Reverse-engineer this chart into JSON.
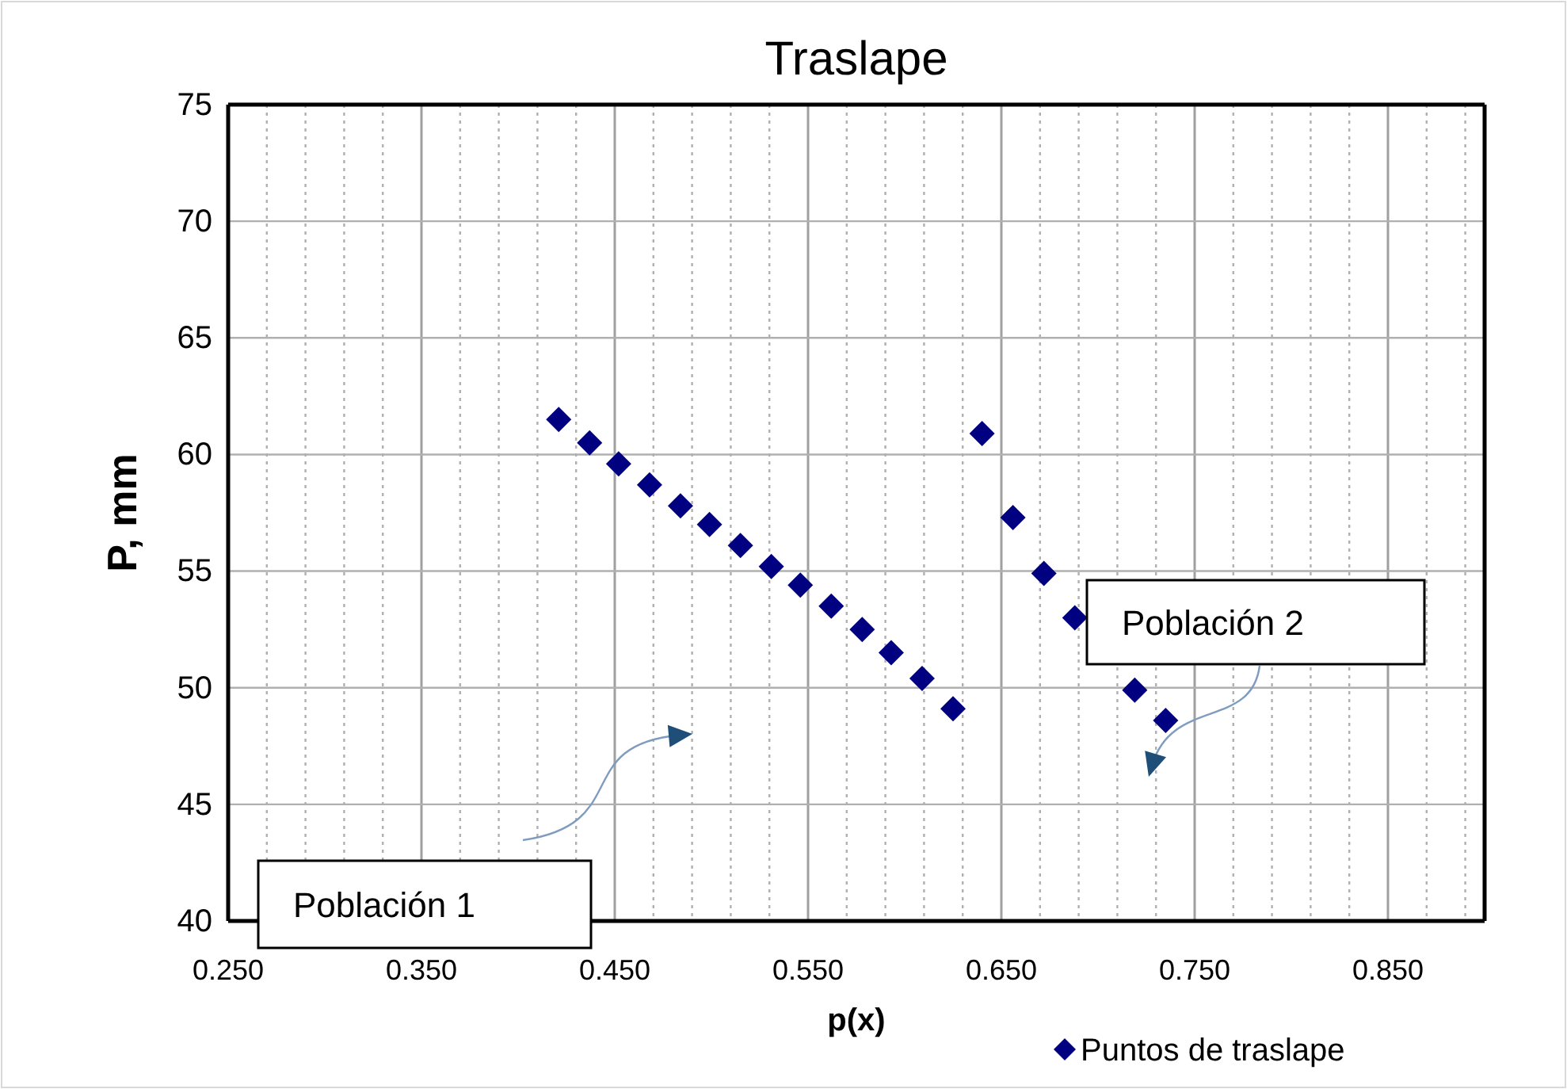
{
  "chart_data": {
    "type": "scatter",
    "title": "Traslape",
    "xlabel": "p(x)",
    "ylabel": "P, mm",
    "xlim": [
      0.25,
      0.9
    ],
    "xticks": [
      {
        "value": 0.25,
        "label": "0.250"
      },
      {
        "value": 0.27,
        "label": null
      },
      {
        "value": 0.29,
        "label": null
      },
      {
        "value": 0.31,
        "label": null
      },
      {
        "value": 0.33,
        "label": null
      },
      {
        "value": 0.35,
        "label": "0.350"
      },
      {
        "value": 0.37,
        "label": null
      },
      {
        "value": 0.39,
        "label": null
      },
      {
        "value": 0.41,
        "label": null
      },
      {
        "value": 0.43,
        "label": null
      },
      {
        "value": 0.45,
        "label": "0.450"
      },
      {
        "value": 0.47,
        "label": null
      },
      {
        "value": 0.49,
        "label": null
      },
      {
        "value": 0.51,
        "label": null
      },
      {
        "value": 0.53,
        "label": null
      },
      {
        "value": 0.55,
        "label": "0.550"
      },
      {
        "value": 0.57,
        "label": null
      },
      {
        "value": 0.59,
        "label": null
      },
      {
        "value": 0.61,
        "label": null
      },
      {
        "value": 0.63,
        "label": null
      },
      {
        "value": 0.65,
        "label": "0.650"
      },
      {
        "value": 0.67,
        "label": null
      },
      {
        "value": 0.69,
        "label": null
      },
      {
        "value": 0.71,
        "label": null
      },
      {
        "value": 0.73,
        "label": null
      },
      {
        "value": 0.75,
        "label": "0.750"
      },
      {
        "value": 0.77,
        "label": null
      },
      {
        "value": 0.79,
        "label": null
      },
      {
        "value": 0.81,
        "label": null
      },
      {
        "value": 0.83,
        "label": null
      },
      {
        "value": 0.85,
        "label": "0.850"
      },
      {
        "value": 0.87,
        "label": null
      },
      {
        "value": 0.89,
        "label": null
      }
    ],
    "ylim": [
      40,
      75
    ],
    "yticks": [
      40,
      45,
      50,
      55,
      60,
      65,
      70,
      75
    ],
    "grid": true,
    "legend": "bottom right",
    "marker": "diamond",
    "series": [
      {
        "name": "Puntos de traslape",
        "color": "#000080",
        "x": [
          0.421,
          0.437,
          0.452,
          0.468,
          0.484,
          0.499,
          0.515,
          0.531,
          0.546,
          0.562,
          0.578,
          0.593,
          0.609,
          0.625,
          0.64,
          0.656,
          0.672,
          0.688,
          0.719,
          0.735
        ],
        "values": [
          61.5,
          60.5,
          59.6,
          58.7,
          57.8,
          57.0,
          56.1,
          55.2,
          54.4,
          53.5,
          52.5,
          51.5,
          50.4,
          49.1,
          60.9,
          57.3,
          54.9,
          53.0,
          49.9,
          48.6
        ]
      }
    ],
    "annotations": [
      "Población 1",
      "Población 2"
    ]
  }
}
